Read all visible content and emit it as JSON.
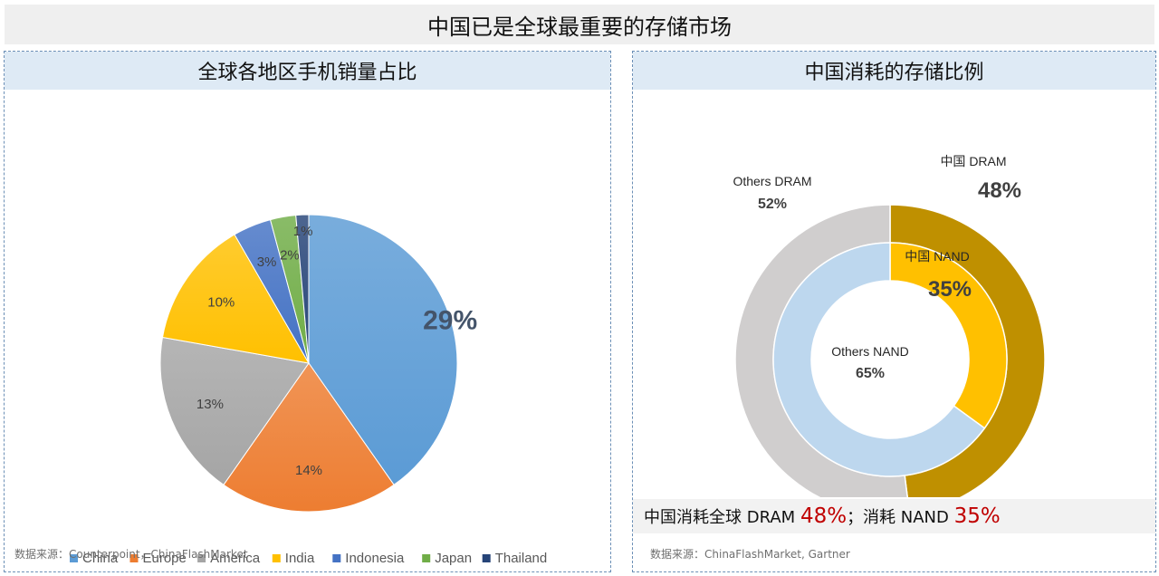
{
  "page_title": "中国已是全球最重要的存储市场",
  "left": {
    "title": "全球各地区手机销量占比",
    "source": "数据来源：Counterpoint，ChinaFlashMarket"
  },
  "right": {
    "title": "中国消耗的存储比例",
    "summary": {
      "part1": "中国消耗全球 DRAM ",
      "value1": "48%",
      "part2": "；消耗 NAND ",
      "value2": "35%"
    },
    "source": "数据来源：ChinaFlashMarket, Gartner"
  },
  "chart_data": [
    {
      "type": "pie",
      "title": "全球各地区手机销量占比",
      "categories": [
        "China",
        "Europe",
        "America",
        "India",
        "Indonesia",
        "Japan",
        "Thailand"
      ],
      "values": [
        29,
        14,
        13,
        10,
        3,
        2,
        1
      ],
      "labels": [
        "29%",
        "14%",
        "13%",
        "10%",
        "3%",
        "2%",
        "1%"
      ],
      "colors": [
        "#5b9bd5",
        "#ed7d31",
        "#a5a5a5",
        "#ffc000",
        "#4472c4",
        "#70ad47",
        "#264478"
      ],
      "legend_position": "bottom"
    },
    {
      "type": "pie",
      "subtype": "double-donut",
      "title": "中国消耗的存储比例",
      "rings": [
        {
          "name": "DRAM",
          "position": "outer",
          "slices": [
            {
              "label": "中国 DRAM",
              "value": 48,
              "text": "48%",
              "color": "#bf9000"
            },
            {
              "label": "Others DRAM",
              "value": 52,
              "text": "52%",
              "color": "#d0cece"
            }
          ]
        },
        {
          "name": "NAND",
          "position": "inner",
          "slices": [
            {
              "label": "中国 NAND",
              "value": 35,
              "text": "35%",
              "color": "#ffc000"
            },
            {
              "label": "Others NAND",
              "value": 65,
              "text": "65%",
              "color": "#bdd7ee"
            }
          ]
        }
      ]
    }
  ]
}
